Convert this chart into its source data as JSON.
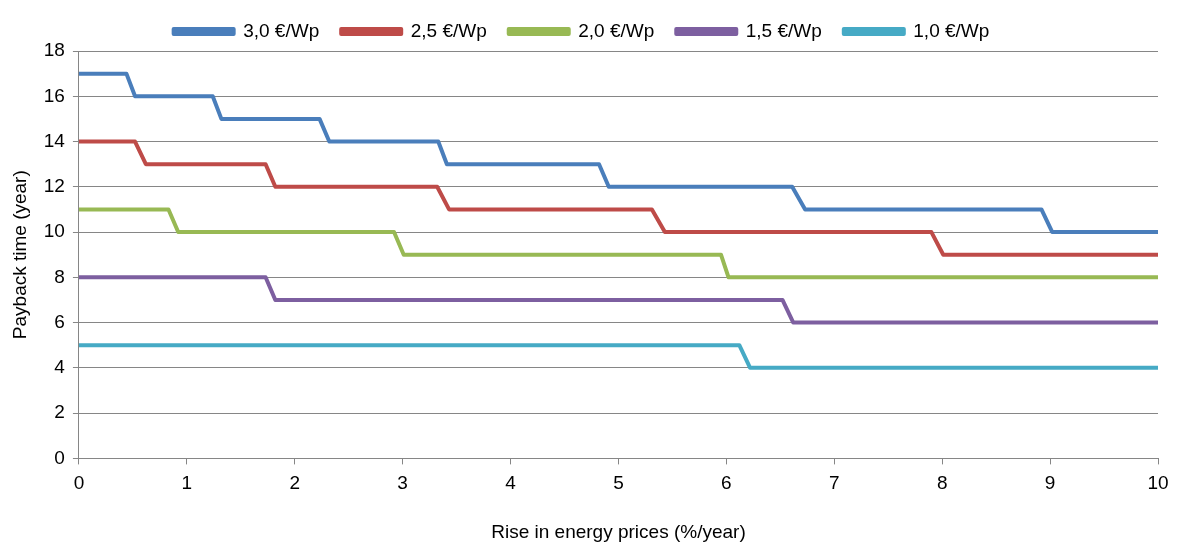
{
  "chart_data": {
    "type": "line",
    "xlabel": "Rise in energy prices (%/year)",
    "ylabel": "Payback time (year)",
    "xlim": [
      0,
      10
    ],
    "xticks": [
      0,
      1,
      2,
      3,
      4,
      5,
      6,
      7,
      8,
      9,
      10
    ],
    "ylim": [
      0,
      18
    ],
    "yticks": [
      0,
      2,
      4,
      6,
      8,
      10,
      12,
      14,
      16,
      18
    ],
    "grid": "y",
    "legend": "top",
    "marker": "none",
    "line_style": "solid",
    "series": [
      {
        "name": "3,0 €/Wp",
        "color": "#4a7ebb",
        "x": [
          0,
          0.44,
          0.52,
          1.24,
          1.32,
          2.23,
          2.32,
          3.33,
          3.41,
          4.82,
          4.91,
          6.61,
          6.73,
          8.92,
          9.02,
          10
        ],
        "values": [
          17,
          17,
          16,
          16,
          15,
          15,
          14,
          14,
          13,
          13,
          12,
          12,
          11,
          11,
          10,
          10
        ]
      },
      {
        "name": "2,5 €/Wp",
        "color": "#be4b48",
        "x": [
          0,
          0.52,
          0.62,
          1.73,
          1.82,
          3.32,
          3.43,
          5.31,
          5.43,
          7.9,
          8.01,
          10
        ],
        "values": [
          14,
          14,
          13,
          13,
          12,
          12,
          11,
          11,
          10,
          10,
          9,
          9
        ]
      },
      {
        "name": "2,0 €/Wp",
        "color": "#98b954",
        "x": [
          0,
          0.83,
          0.92,
          2.92,
          3.01,
          5.95,
          6.02,
          10
        ],
        "values": [
          11,
          11,
          10,
          10,
          9,
          9,
          8,
          8
        ]
      },
      {
        "name": "1,5 €/Wp",
        "color": "#7d5fa0",
        "x": [
          0,
          1.73,
          1.82,
          6.52,
          6.62,
          10
        ],
        "values": [
          8,
          8,
          7,
          7,
          6,
          6
        ]
      },
      {
        "name": "1,0 €/Wp",
        "color": "#46aac5",
        "x": [
          0,
          6.12,
          6.22,
          10
        ],
        "values": [
          5,
          5,
          4,
          4
        ]
      }
    ]
  }
}
